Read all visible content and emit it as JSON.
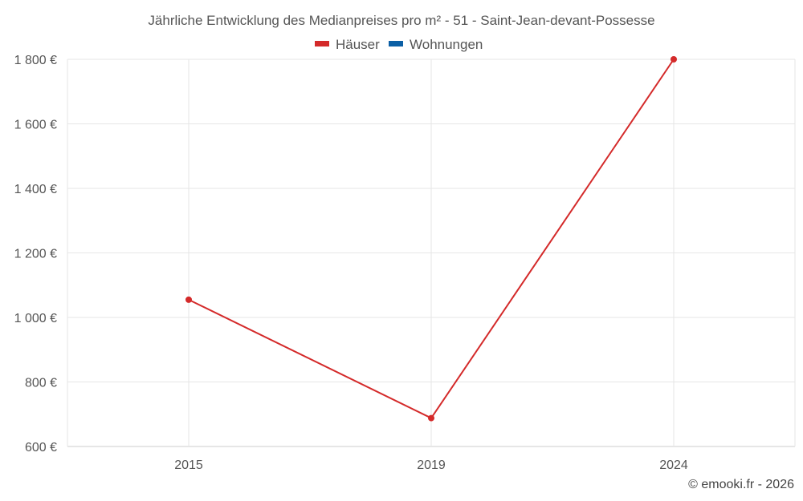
{
  "chart_data": {
    "type": "line",
    "title": "Jährliche Entwicklung des Medianpreises pro m² - 51 - Saint-Jean-devant-Possesse",
    "x": [
      "2015",
      "2019",
      "2024"
    ],
    "series": [
      {
        "name": "Häuser",
        "color": "#d42a2a",
        "values": [
          1055,
          688,
          1800
        ]
      },
      {
        "name": "Wohnungen",
        "color": "#0b5fa5",
        "values": [
          null,
          null,
          null
        ]
      }
    ],
    "ylim": [
      600,
      1800
    ],
    "yticks": [
      {
        "value": 600,
        "label": "600 €"
      },
      {
        "value": 800,
        "label": "800 €"
      },
      {
        "value": 1000,
        "label": "1 000 €"
      },
      {
        "value": 1200,
        "label": "1 200 €"
      },
      {
        "value": 1400,
        "label": "1 400 €"
      },
      {
        "value": 1600,
        "label": "1 600 €"
      },
      {
        "value": 1800,
        "label": "1 800 €"
      }
    ],
    "grid": true,
    "legend_position": "top-center"
  },
  "credit": "© emooki.fr - 2026"
}
